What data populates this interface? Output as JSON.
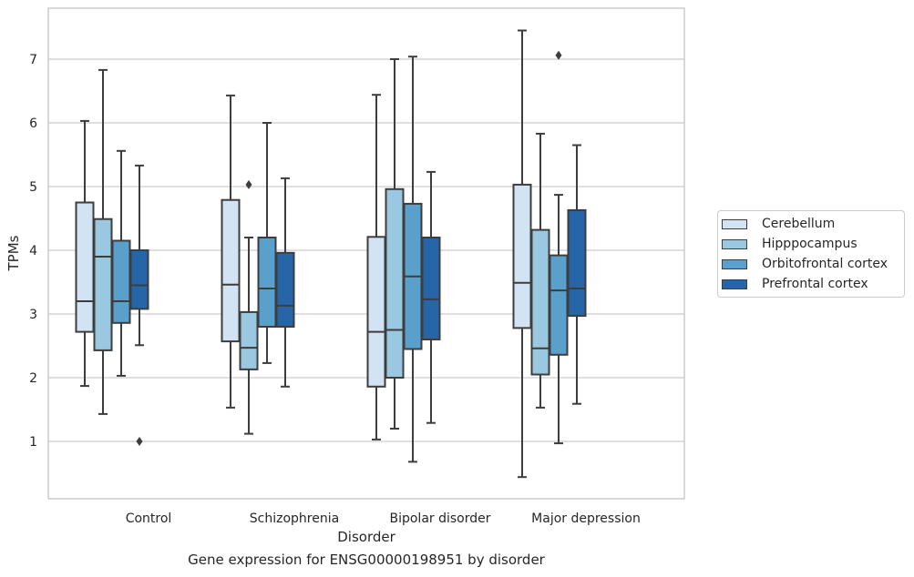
{
  "chart_data": {
    "type": "box",
    "xlabel": "Disorder",
    "ylabel": "TPMs",
    "caption": "Gene expression for ENSG00000198951 by disorder",
    "categories": [
      "Control",
      "Schizophrenia",
      "Bipolar disorder",
      "Major depression"
    ],
    "ylim": [
      0.1,
      7.8
    ],
    "yticks": [
      1,
      2,
      3,
      4,
      5,
      6,
      7
    ],
    "grid": true,
    "legend_position": "right",
    "series": [
      {
        "name": "Cerebellum",
        "color": "#d2e3f3",
        "boxes": [
          {
            "min": 1.87,
            "q1": 2.72,
            "median": 3.2,
            "q3": 4.75,
            "max": 6.03,
            "outliers": []
          },
          {
            "min": 1.53,
            "q1": 2.57,
            "median": 3.46,
            "q3": 4.79,
            "max": 6.43,
            "outliers": []
          },
          {
            "min": 1.03,
            "q1": 1.86,
            "median": 2.72,
            "q3": 4.21,
            "max": 6.44,
            "outliers": []
          },
          {
            "min": 0.44,
            "q1": 2.78,
            "median": 3.49,
            "q3": 5.03,
            "max": 7.45,
            "outliers": []
          }
        ]
      },
      {
        "name": "Hipppocampus",
        "color": "#9ac8e0",
        "boxes": [
          {
            "min": 1.43,
            "q1": 2.43,
            "median": 3.9,
            "q3": 4.49,
            "max": 6.83,
            "outliers": []
          },
          {
            "min": 1.12,
            "q1": 2.13,
            "median": 2.47,
            "q3": 3.03,
            "max": 4.2,
            "outliers": [
              5.03
            ]
          },
          {
            "min": 1.2,
            "q1": 2.0,
            "median": 2.75,
            "q3": 4.96,
            "max": 7.0,
            "outliers": []
          },
          {
            "min": 1.53,
            "q1": 2.05,
            "median": 2.46,
            "q3": 4.32,
            "max": 5.83,
            "outliers": []
          }
        ]
      },
      {
        "name": "Orbitofrontal cortex",
        "color": "#5aa0cd",
        "boxes": [
          {
            "min": 2.03,
            "q1": 2.86,
            "median": 3.2,
            "q3": 4.15,
            "max": 5.56,
            "outliers": []
          },
          {
            "min": 2.23,
            "q1": 2.8,
            "median": 3.4,
            "q3": 4.2,
            "max": 6.0,
            "outliers": []
          },
          {
            "min": 0.68,
            "q1": 2.45,
            "median": 3.59,
            "q3": 4.73,
            "max": 7.04,
            "outliers": []
          },
          {
            "min": 0.97,
            "q1": 2.36,
            "median": 3.37,
            "q3": 3.92,
            "max": 4.87,
            "outliers": [
              7.06
            ]
          }
        ]
      },
      {
        "name": "Prefrontal cortex",
        "color": "#2666a8",
        "boxes": [
          {
            "min": 2.51,
            "q1": 3.08,
            "median": 3.45,
            "q3": 4.0,
            "max": 5.33,
            "outliers": [
              1.0
            ]
          },
          {
            "min": 1.86,
            "q1": 2.8,
            "median": 3.13,
            "q3": 3.96,
            "max": 5.13,
            "outliers": []
          },
          {
            "min": 1.29,
            "q1": 2.6,
            "median": 3.23,
            "q3": 4.2,
            "max": 5.23,
            "outliers": []
          },
          {
            "min": 1.59,
            "q1": 2.97,
            "median": 3.4,
            "q3": 4.63,
            "max": 5.65,
            "outliers": []
          }
        ]
      }
    ]
  }
}
